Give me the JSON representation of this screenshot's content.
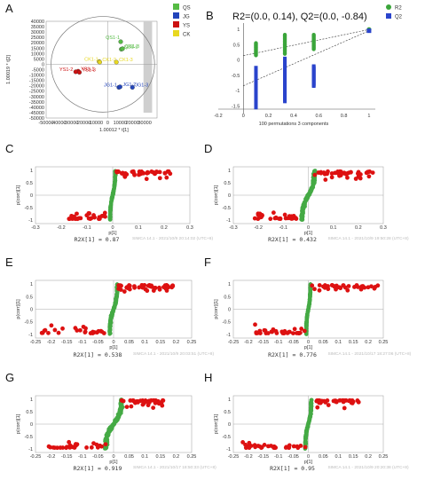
{
  "colors": {
    "QS": "#55bb44",
    "JG": "#2244bb",
    "YS": "#cc1111",
    "CK": "#e8d820",
    "R2": "#3aa53a",
    "Q2": "#2a44cc",
    "scurve_green": "#44aa44",
    "scurve_red": "#dd1111"
  },
  "chart_data": [
    {
      "id": "A",
      "panel_label": "A",
      "type": "scatter",
      "xlabel": "1.00012 * t[1]",
      "ylabel": "1.00019 * t[2]",
      "xticks": [
        "-50000",
        "-40000",
        "-30000",
        "-20000",
        "-10000",
        "0",
        "10000",
        "20000",
        "30000"
      ],
      "yticks": [
        "40000",
        "35000",
        "30000",
        "25000",
        "20000",
        "15000",
        "10000",
        "5000",
        "0",
        "-5000",
        "-10000",
        "-15000",
        "-20000",
        "-25000",
        "-30000",
        "-35000",
        "-40000",
        "-45000",
        "-50000"
      ],
      "xlim": [
        -50000,
        40000
      ],
      "ylim": [
        -50000,
        40000
      ],
      "legend": [
        {
          "name": "QS",
          "color": "#55bb44"
        },
        {
          "name": "JG",
          "color": "#2244bb"
        },
        {
          "name": "YS",
          "color": "#cc1111"
        },
        {
          "name": "CK",
          "color": "#e8d820"
        }
      ],
      "points": [
        {
          "label": "QS1-1",
          "group": "QS",
          "x": 10500,
          "y": 21000
        },
        {
          "label": "QS1-2",
          "group": "QS",
          "x": 11000,
          "y": 14000
        },
        {
          "label": "QS1-3",
          "group": "QS",
          "x": 12000,
          "y": 14500
        },
        {
          "label": "CK1-1",
          "group": "CK",
          "x": -7000,
          "y": 2500
        },
        {
          "label": "CK1-2",
          "group": "CK",
          "x": -6500,
          "y": 2000
        },
        {
          "label": "CK1-3",
          "group": "CK",
          "x": 7000,
          "y": 2000
        },
        {
          "label": "YS1-1",
          "group": "YS",
          "x": -24000,
          "y": -6500
        },
        {
          "label": "YS1-2",
          "group": "YS",
          "x": -26000,
          "y": -7000
        },
        {
          "label": "YS1-3",
          "group": "YS",
          "x": -23000,
          "y": -7500
        },
        {
          "label": "JG1-1",
          "group": "JG",
          "x": 9000,
          "y": -21500
        },
        {
          "label": "JG1-2",
          "group": "JG",
          "x": 10000,
          "y": -21000
        },
        {
          "label": "JG1-3",
          "group": "JG",
          "x": 20000,
          "y": -21500
        }
      ]
    },
    {
      "id": "B",
      "panel_label": "B",
      "type": "scatter",
      "title": "R2=(0.0, 0.14), Q2=(0.0, -0.84)",
      "xlabel": "100 permutations 3 components",
      "xticks": [
        "-0.2",
        "0",
        "0.2",
        "0.4",
        "0.6",
        "0.8",
        "1"
      ],
      "yticks": [
        "1",
        "0.5",
        "0",
        "-0.5",
        "-1",
        "-1.5"
      ],
      "xlim": [
        -0.2,
        1.05
      ],
      "ylim": [
        -1.6,
        1.2
      ],
      "legend": [
        {
          "name": "R2",
          "color": "#3aa53a"
        },
        {
          "name": "Q2",
          "color": "#2a44cc"
        }
      ],
      "series": [
        {
          "name": "R2",
          "intercept": 0.14,
          "obs_x": 1.0,
          "obs_y": 0.99,
          "columns": [
            {
              "x": 0.1,
              "min": 0.15,
              "max": 0.55
            },
            {
              "x": 0.33,
              "min": 0.2,
              "max": 0.82
            },
            {
              "x": 0.56,
              "min": 0.35,
              "max": 0.82
            }
          ]
        },
        {
          "name": "Q2",
          "intercept": -0.84,
          "obs_x": 1.0,
          "obs_y": 0.95,
          "columns": [
            {
              "x": 0.1,
              "min": -1.55,
              "max": -0.25
            },
            {
              "x": 0.33,
              "min": -1.35,
              "max": 0.05
            },
            {
              "x": 0.56,
              "min": -0.85,
              "max": -0.2
            }
          ]
        }
      ]
    },
    {
      "id": "C",
      "panel_label": "C",
      "type": "scatter",
      "xlabel": "p[1]",
      "ylabel": "p(corr)[1]",
      "footer": "R2X[1] = 0.87",
      "footer_note": "SIMCA 14.1 - 2021/10/9 20:14:02 (UTC+8)",
      "xticks": [
        "-0.3",
        "-0.2",
        "-0.1",
        "0",
        "0.1",
        "0.2",
        "0.3"
      ],
      "yticks": [
        "1",
        "0.5",
        "0",
        "-0.5",
        "-1"
      ],
      "xlim": [
        -0.3,
        0.3
      ],
      "ylim": [
        -1.15,
        1.15
      ],
      "xmin": -0.17,
      "xmax": 0.23,
      "halfwidth": 0.01
    },
    {
      "id": "D",
      "panel_label": "D",
      "type": "scatter",
      "xlabel": "p[1]",
      "ylabel": "p(corr)[1]",
      "footer": "R2X[1] = 0.432",
      "footer_note": "SIMCA 14.1 - 2021/10/9 19:50:28 (UTC+8)",
      "xticks": [
        "-0.3",
        "-0.2",
        "-0.1",
        "0",
        "0.1",
        "0.2",
        "0.3"
      ],
      "yticks": [
        "1",
        "0.5",
        "0",
        "-0.5",
        "-1"
      ],
      "xlim": [
        -0.3,
        0.3
      ],
      "ylim": [
        -1.15,
        1.15
      ],
      "xmin": -0.22,
      "xmax": 0.26,
      "halfwidth": 0.025
    },
    {
      "id": "E",
      "panel_label": "E",
      "type": "scatter",
      "xlabel": "p[1]",
      "ylabel": "p(corr)[1]",
      "footer": "R2X[1] = 0.538",
      "footer_note": "SIMCA 14.1 - 2021/10/9 20:03:51 (UTC+8)",
      "xticks": [
        "-0.25",
        "-0.2",
        "-0.15",
        "-0.1",
        "-0.05",
        "0",
        "0.05",
        "0.1",
        "0.15",
        "0.2",
        "0.25"
      ],
      "yticks": [
        "1",
        "0.5",
        "0",
        "-0.5",
        "-1"
      ],
      "xlim": [
        -0.25,
        0.25
      ],
      "ylim": [
        -1.15,
        1.15
      ],
      "xmin": -0.23,
      "xmax": 0.19,
      "halfwidth": 0.012
    },
    {
      "id": "F",
      "panel_label": "F",
      "type": "scatter",
      "xlabel": "p[1]",
      "ylabel": "p(corr)[1]",
      "footer": "R2X[1] = 0.776",
      "footer_note": "SIMCA 14.1 - 2021/10/17 18:27:06 (UTC+8)",
      "xticks": [
        "-0.25",
        "-0.2",
        "-0.15",
        "-0.1",
        "-0.05",
        "0",
        "0.05",
        "0.1",
        "0.15",
        "0.2",
        "0.25"
      ],
      "yticks": [
        "1",
        "0.5",
        "0",
        "-0.5",
        "-1"
      ],
      "xlim": [
        -0.25,
        0.25
      ],
      "ylim": [
        -1.15,
        1.15
      ],
      "xmin": -0.18,
      "xmax": 0.24,
      "halfwidth": 0.007
    },
    {
      "id": "G",
      "panel_label": "G",
      "type": "scatter",
      "xlabel": "p[1]",
      "ylabel": "p(corr)[1]",
      "footer": "R2X[1] = 0.919",
      "footer_note": "SIMCA 14.1 - 2021/10/17 18:50:33 (UTC+8)",
      "xticks": [
        "-0.25",
        "-0.2",
        "-0.15",
        "-0.1",
        "-0.05",
        "0",
        "0.05",
        "0.1",
        "0.15",
        "0.2",
        "0.25"
      ],
      "yticks": [
        "1",
        "0.5",
        "0",
        "-0.5",
        "-1"
      ],
      "xlim": [
        -0.25,
        0.25
      ],
      "ylim": [
        -1.15,
        1.15
      ],
      "xmin": -0.21,
      "xmax": 0.16,
      "halfwidth": 0.025
    },
    {
      "id": "H",
      "panel_label": "H",
      "type": "scatter",
      "xlabel": "p[1]",
      "ylabel": "p(corr)[1]",
      "footer": "R2X[1] = 0.95",
      "footer_note": "SIMCA 14.1 - 2021/10/9 20:20:38 (UTC+8)",
      "xticks": [
        "-0.25",
        "-0.2",
        "-0.15",
        "-0.1",
        "-0.05",
        "0",
        "0.05",
        "0.1",
        "0.15",
        "0.2",
        "0.25"
      ],
      "yticks": [
        "1",
        "0.5",
        "0",
        "-0.5",
        "-1"
      ],
      "xlim": [
        -0.25,
        0.25
      ],
      "ylim": [
        -1.15,
        1.15
      ],
      "xmin": -0.22,
      "xmax": 0.17,
      "halfwidth": 0.01
    }
  ]
}
